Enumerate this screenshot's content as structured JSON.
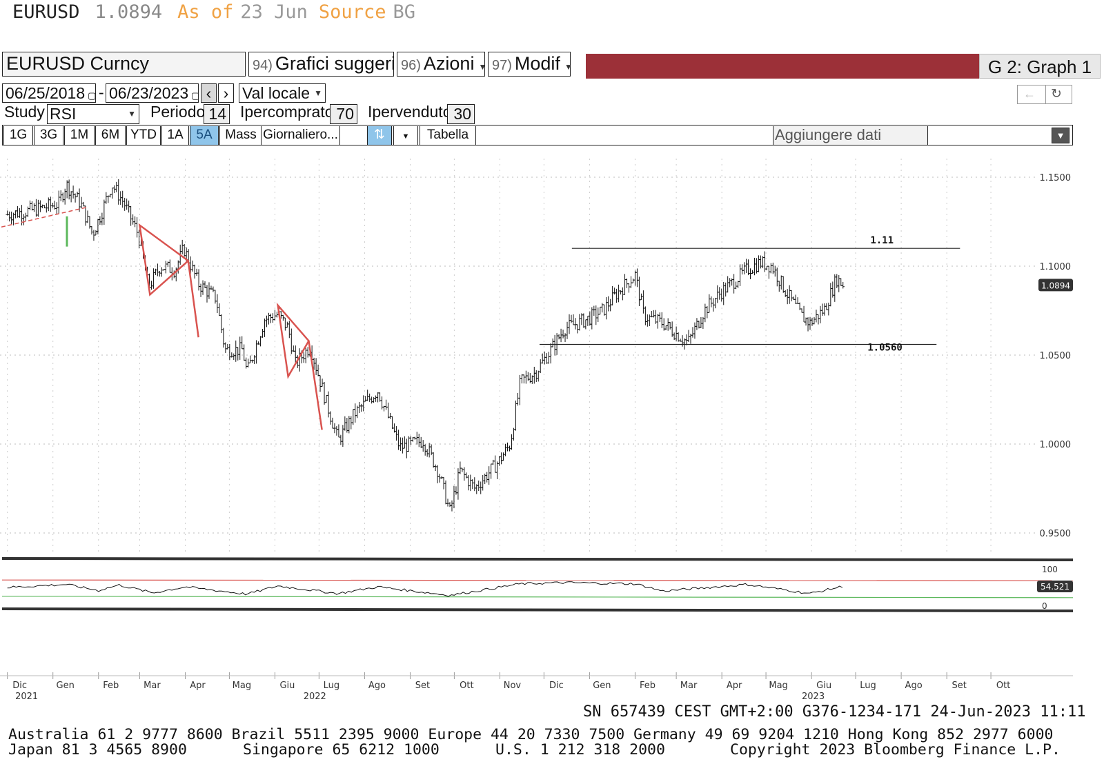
{
  "header": {
    "ticker": "EURUSD",
    "price": "1.0894",
    "as_of_label": "As of",
    "as_of_date": "23 Jun",
    "source_label": "Source",
    "source_value": "BG"
  },
  "toolbar": {
    "security": "EURUSD Curncy",
    "suggested_num": "94)",
    "suggested_label": "Grafici suggeriti",
    "actions_num": "96)",
    "actions_label": "Azioni",
    "modify_num": "97)",
    "modify_label": "Modif",
    "graph_label": "G 2: Graph 1",
    "start_date": "06/25/2018",
    "date_separator": "-",
    "end_date": "06/23/2023",
    "currency_mode": "Val locale",
    "study_label": "Study",
    "study_value": "RSI",
    "period_label": "Periodo",
    "period_value": "14",
    "overbought_label": "Ipercomprato",
    "overbought_value": "70",
    "oversold_label": "Ipervenduto",
    "oversold_value": "30",
    "ranges": [
      "1G",
      "3G",
      "1M",
      "6M",
      "YTD",
      "1A",
      "5A",
      "Mass"
    ],
    "selected_range": "5A",
    "frequency": "Giornaliero...",
    "table_label": "Tabella",
    "add_data_label": "Aggiungere dati"
  },
  "chart_data": {
    "type": "candlestick",
    "y_axis": {
      "range": [
        0.93,
        1.17
      ],
      "ticks": [
        "1.1500",
        "1.1000",
        "1.0500",
        "1.0000",
        "0.9500"
      ],
      "tick_values": [
        1.15,
        1.1,
        1.05,
        1.0,
        0.95
      ],
      "position": "right"
    },
    "last_price_label": "1.0894",
    "x_axis": {
      "month_labels": [
        "Dic",
        "Gen",
        "Feb",
        "Mar",
        "Apr",
        "Mag",
        "Giu",
        "Lug",
        "Ago",
        "Set",
        "Ott",
        "Nov",
        "Dic",
        "Gen",
        "Feb",
        "Mar",
        "Apr",
        "Mag",
        "Giu",
        "Lug",
        "Ago",
        "Set",
        "Ott"
      ],
      "year_labels": [
        "2021",
        "2022",
        "2023"
      ]
    },
    "price_path": [
      [
        "2021-12-01",
        1.129
      ],
      [
        "2021-12-15",
        1.131
      ],
      [
        "2022-01-05",
        1.135
      ],
      [
        "2022-01-10",
        1.146
      ],
      [
        "2022-01-20",
        1.135
      ],
      [
        "2022-01-28",
        1.118
      ],
      [
        "2022-02-03",
        1.13
      ],
      [
        "2022-02-10",
        1.146
      ],
      [
        "2022-02-18",
        1.136
      ],
      [
        "2022-02-28",
        1.118
      ],
      [
        "2022-03-07",
        1.088
      ],
      [
        "2022-03-15",
        1.1
      ],
      [
        "2022-03-25",
        1.098
      ],
      [
        "2022-03-31",
        1.11
      ],
      [
        "2022-04-10",
        1.09
      ],
      [
        "2022-04-22",
        1.082
      ],
      [
        "2022-04-28",
        1.053
      ],
      [
        "2022-05-10",
        1.053
      ],
      [
        "2022-05-13",
        1.04
      ],
      [
        "2022-05-25",
        1.07
      ],
      [
        "2022-06-03",
        1.073
      ],
      [
        "2022-06-10",
        1.065
      ],
      [
        "2022-06-15",
        1.045
      ],
      [
        "2022-06-25",
        1.055
      ],
      [
        "2022-07-05",
        1.026
      ],
      [
        "2022-07-14",
        1.002
      ],
      [
        "2022-07-25",
        1.017
      ],
      [
        "2022-08-10",
        1.03
      ],
      [
        "2022-08-25",
        0.998
      ],
      [
        "2022-09-10",
        1.002
      ],
      [
        "2022-09-20",
        0.985
      ],
      [
        "2022-09-28",
        0.962
      ],
      [
        "2022-10-05",
        0.985
      ],
      [
        "2022-10-15",
        0.975
      ],
      [
        "2022-10-31",
        0.99
      ],
      [
        "2022-11-08",
        1.0
      ],
      [
        "2022-11-15",
        1.035
      ],
      [
        "2022-11-25",
        1.04
      ],
      [
        "2022-12-05",
        1.052
      ],
      [
        "2022-12-15",
        1.065
      ],
      [
        "2022-12-30",
        1.07
      ],
      [
        "2023-01-10",
        1.075
      ],
      [
        "2023-01-20",
        1.085
      ],
      [
        "2023-02-01",
        1.095
      ],
      [
        "2023-02-07",
        1.072
      ],
      [
        "2023-02-20",
        1.068
      ],
      [
        "2023-03-01",
        1.062
      ],
      [
        "2023-03-09",
        1.057
      ],
      [
        "2023-03-20",
        1.075
      ],
      [
        "2023-03-31",
        1.085
      ],
      [
        "2023-04-10",
        1.092
      ],
      [
        "2023-04-18",
        1.098
      ],
      [
        "2023-04-27",
        1.102
      ],
      [
        "2023-05-05",
        1.1
      ],
      [
        "2023-05-15",
        1.085
      ],
      [
        "2023-05-25",
        1.072
      ],
      [
        "2023-05-31",
        1.068
      ],
      [
        "2023-06-10",
        1.076
      ],
      [
        "2023-06-18",
        1.093
      ],
      [
        "2023-06-23",
        1.089
      ]
    ],
    "annotations": [
      {
        "type": "horizontal_line",
        "value": 1.11,
        "label": "1.11",
        "from": "2022-12-20",
        "to": "2023-09-10"
      },
      {
        "type": "horizontal_line",
        "value": 1.056,
        "label": "1.0560",
        "from": "2022-11-28",
        "to": "2023-08-25"
      },
      {
        "type": "triangle",
        "color": "#d9534f",
        "points": [
          [
            "2022-03-01",
            1.123
          ],
          [
            "2022-03-08",
            1.084
          ],
          [
            "2022-04-03",
            1.103
          ]
        ]
      },
      {
        "type": "segment",
        "color": "#d9534f",
        "points": [
          [
            "2022-04-03",
            1.103
          ],
          [
            "2022-04-10",
            1.06
          ]
        ]
      },
      {
        "type": "triangle",
        "color": "#d9534f",
        "points": [
          [
            "2022-06-03",
            1.078
          ],
          [
            "2022-06-10",
            1.038
          ],
          [
            "2022-06-24",
            1.058
          ]
        ]
      },
      {
        "type": "segment",
        "color": "#d9534f",
        "points": [
          [
            "2022-06-24",
            1.058
          ],
          [
            "2022-07-03",
            1.008
          ]
        ]
      }
    ],
    "rsi": {
      "period": 14,
      "overbought": 70,
      "oversold": 30,
      "axis_ticks": [
        "100",
        "0"
      ],
      "last_value": "54.521",
      "path": [
        [
          "2021-12-01",
          50
        ],
        [
          "2022-01-10",
          60
        ],
        [
          "2022-02-01",
          40
        ],
        [
          "2022-02-15",
          58
        ],
        [
          "2022-03-10",
          32
        ],
        [
          "2022-04-01",
          52
        ],
        [
          "2022-05-13",
          28
        ],
        [
          "2022-06-03",
          55
        ],
        [
          "2022-07-14",
          30
        ],
        [
          "2022-08-10",
          52
        ],
        [
          "2022-09-28",
          24
        ],
        [
          "2022-11-15",
          62
        ],
        [
          "2022-12-15",
          66
        ],
        [
          "2023-02-01",
          62
        ],
        [
          "2023-02-20",
          38
        ],
        [
          "2023-04-18",
          60
        ],
        [
          "2023-05-31",
          30
        ],
        [
          "2023-06-23",
          54.5
        ]
      ]
    },
    "grid": true,
    "legend": "none"
  },
  "footer": {
    "session": "SN 657439 CEST GMT+2:00 G376-1234-171 24-Jun-2023 11:11",
    "contacts_line1": "Australia 61 2 9777 8600 Brazil 5511 2395 9000 Europe 44 20 7330 7500 Germany 49 69 9204 1210 Hong Kong 852 2977 6000",
    "contacts_line2a": "Japan 81 3 4565 8900",
    "contacts_line2b": "Singapore 65 6212 1000",
    "contacts_line2c": "U.S. 1 212 318 2000",
    "copyright": "Copyright 2023 Bloomberg Finance L.P."
  }
}
